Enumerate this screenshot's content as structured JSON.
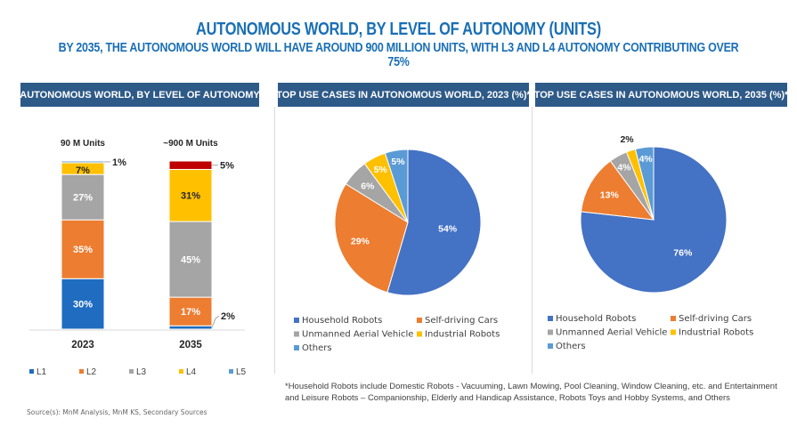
{
  "header": {
    "title": "AUTONOMOUS WORLD, BY LEVEL OF AUTONOMY (UNITS)",
    "subtitle": "BY 2035, THE AUTONOMOUS WORLD WILL HAVE AROUND 900 MILLION UNITS, WITH L3 AND L4 AUTONOMY CONTRIBUTING OVER 75%"
  },
  "colors": {
    "header_bg": "#2e5a88",
    "title": "#1a6fb5",
    "L1": "#1f6cc0",
    "L2": "#ed7d31",
    "L3": "#a5a5a5",
    "L4": "#ffc000",
    "L5": "#5b9bd5",
    "L5_2035_bar": "#c00000",
    "household": "#4472c4",
    "selfdriving": "#ed7d31",
    "uav": "#a5a5a5",
    "industrial": "#ffc000",
    "others": "#5b9bd5"
  },
  "chart_data": [
    {
      "type": "bar",
      "stacked": true,
      "title": "AUTONOMOUS WORLD, BY LEVEL OF AUTONOMY",
      "categories": [
        "2023",
        "2035"
      ],
      "totals": [
        "90 M Units",
        "~900 M Units"
      ],
      "series": [
        {
          "name": "L1",
          "values": [
            30,
            2
          ]
        },
        {
          "name": "L2",
          "values": [
            35,
            17
          ]
        },
        {
          "name": "L3",
          "values": [
            27,
            45
          ]
        },
        {
          "name": "L4",
          "values": [
            7,
            31
          ]
        },
        {
          "name": "L5",
          "values": [
            1,
            5
          ]
        }
      ],
      "unit": "%",
      "legend": "bottom",
      "grid": false
    },
    {
      "type": "pie",
      "title": "TOP USE CASES IN AUTONOMOUS WORLD, 2023 (%)*",
      "labels": [
        "Household Robots",
        "Self-driving Cars",
        "Unmanned Aerial Vehicle",
        "Industrial  Robots",
        "Others"
      ],
      "values": [
        54,
        29,
        6,
        5,
        5
      ],
      "legend": "bottom"
    },
    {
      "type": "pie",
      "title": "TOP USE CASES IN AUTONOMOUS WORLD, 2035 (%)*",
      "labels": [
        "Household Robots",
        "Self-driving Cars",
        "Unmanned Aerial Vehicle",
        "Industrial  Robots",
        "Others"
      ],
      "values": [
        76,
        13,
        4,
        2,
        4
      ],
      "legend": "bottom"
    }
  ],
  "footnote": "*Household Robots include Domestic Robots - Vacuuming, Lawn Mowing, Pool Cleaning, Window Cleaning, etc. and Entertainment and Leisure Robots – Companionship, Elderly and Handicap Assistance, Robots Toys and Hobby Systems, and Others",
  "source": "Source(s): MnM Analysis, MnM KS, Secondary Sources"
}
